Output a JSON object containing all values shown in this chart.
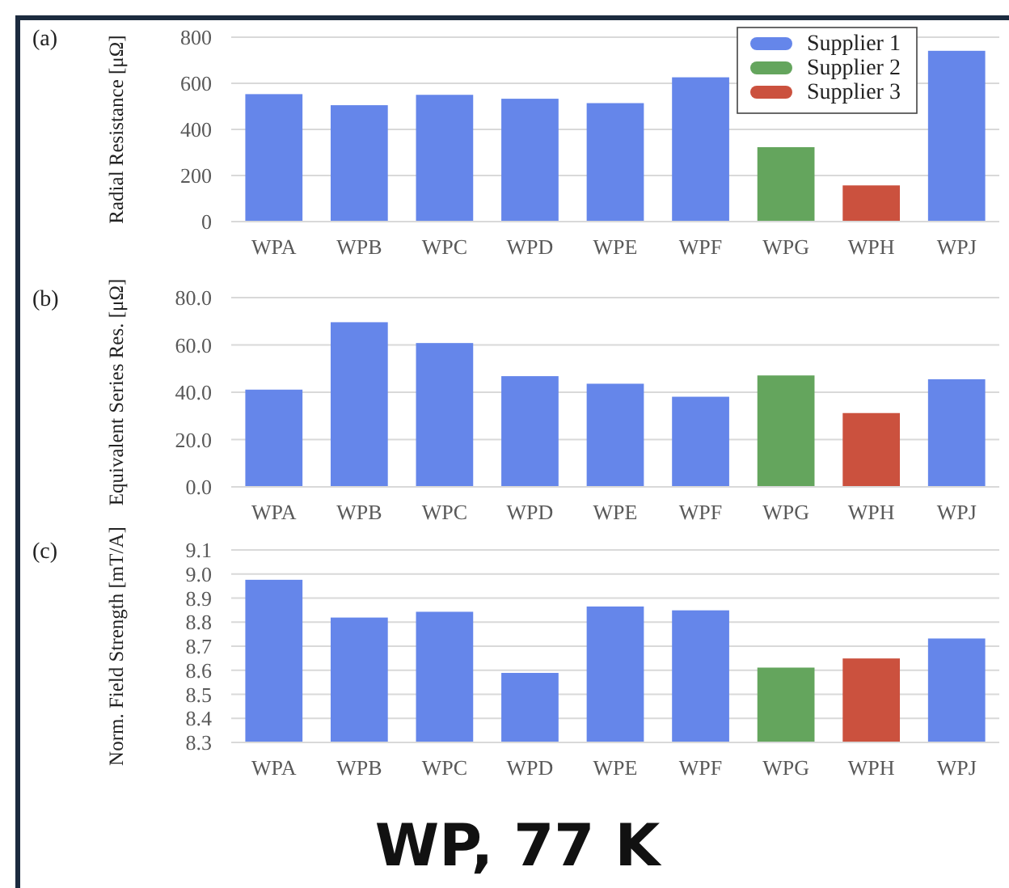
{
  "chart_data": [
    {
      "type": "bar",
      "stacked": true,
      "ylabel": "Radial Resistance [μΩ]",
      "annotations": [
        "(a)"
      ],
      "categories": [
        "WPA",
        "WPB",
        "WPC",
        "WPD",
        "WPE",
        "WPF",
        "WPG",
        "WPH",
        "WPJ"
      ],
      "series": [
        {
          "name": "Supplier 1",
          "color": "#6586ea",
          "values": [
            553,
            505,
            550,
            533,
            514,
            626,
            null,
            null,
            741
          ]
        },
        {
          "name": "Supplier 2",
          "color": "#64a55d",
          "values": [
            null,
            null,
            null,
            null,
            null,
            null,
            323,
            null,
            null
          ]
        },
        {
          "name": "Supplier 3",
          "color": "#cb513e",
          "values": [
            null,
            null,
            null,
            null,
            null,
            null,
            null,
            157,
            null
          ]
        }
      ],
      "ylim": [
        0,
        800
      ],
      "yticks": [
        0,
        200,
        400,
        600,
        800
      ],
      "grid": "y",
      "legend": "top right"
    },
    {
      "type": "bar",
      "stacked": true,
      "ylabel": "Equivalent Series Res. [μΩ]",
      "annotations": [
        "(b)"
      ],
      "categories": [
        "WPA",
        "WPB",
        "WPC",
        "WPD",
        "WPE",
        "WPF",
        "WPG",
        "WPH",
        "WPJ"
      ],
      "series": [
        {
          "color": "#6586ea",
          "values": [
            41.1,
            69.6,
            60.8,
            46.8,
            43.6,
            38.1,
            null,
            null,
            45.5
          ]
        },
        {
          "color": "#64a55d",
          "values": [
            null,
            null,
            null,
            null,
            null,
            null,
            47.1,
            null,
            null
          ]
        },
        {
          "color": "#cb513e",
          "values": [
            null,
            null,
            null,
            null,
            null,
            null,
            null,
            31.2,
            null
          ]
        }
      ],
      "ylim": [
        0,
        80
      ],
      "yticks": [
        {
          "value": 0,
          "label": "0.0"
        },
        {
          "value": 20,
          "label": "20.0"
        },
        {
          "value": 40,
          "label": "40.0"
        },
        {
          "value": 60,
          "label": "60.0"
        },
        {
          "value": 80,
          "label": "80.0"
        }
      ],
      "grid": "y"
    },
    {
      "type": "bar",
      "stacked": true,
      "ylabel": "Norm. Field Strength [mT/A]",
      "annotations": [
        "(c)",
        "WP, 77 K"
      ],
      "categories": [
        "WPA",
        "WPB",
        "WPC",
        "WPD",
        "WPE",
        "WPF",
        "WPG",
        "WPH",
        "WPJ"
      ],
      "series": [
        {
          "color": "#6586ea",
          "values": [
            8.976,
            8.819,
            8.843,
            8.589,
            8.865,
            8.849,
            null,
            null,
            8.732
          ]
        },
        {
          "color": "#64a55d",
          "values": [
            null,
            null,
            null,
            null,
            null,
            null,
            8.611,
            null,
            null
          ]
        },
        {
          "color": "#cb513e",
          "values": [
            null,
            null,
            null,
            null,
            null,
            null,
            null,
            8.649,
            null
          ]
        }
      ],
      "ylim": [
        8.3,
        9.1
      ],
      "yticks": [
        8.3,
        8.4,
        8.5,
        8.6,
        8.7,
        8.8,
        8.9,
        {
          "value": 9,
          "label": "9.0"
        },
        9.1
      ],
      "grid": "y"
    }
  ]
}
